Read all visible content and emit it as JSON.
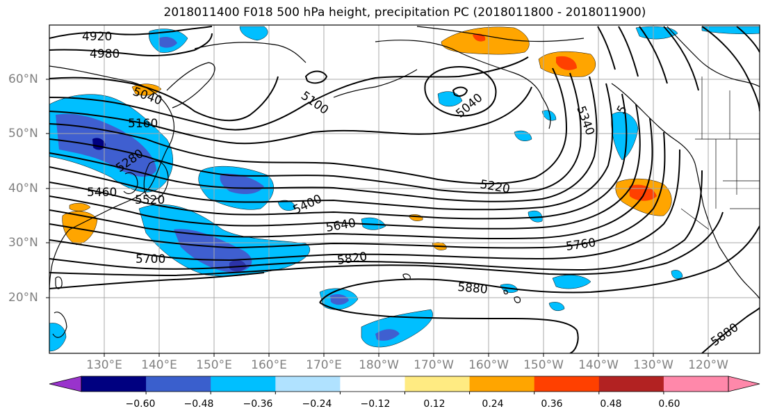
{
  "title": "2018011400 F018 500 hPa height, precipitation PC (2018011800 - 2018011900)",
  "lat_labels": [
    "60°N",
    "50°N",
    "40°N",
    "30°N",
    "20°N"
  ],
  "lon_labels": [
    "130°E",
    "140°E",
    "150°E",
    "160°E",
    "170°E",
    "180°W",
    "170°W",
    "160°W",
    "150°W",
    "140°W",
    "130°W",
    "120°W"
  ],
  "contour_labels": [
    "4920",
    "4980",
    "5040",
    "5100",
    "5040",
    "5160",
    "5280",
    "5340",
    "5460",
    "5520",
    "5400",
    "5220",
    "5640",
    "5700",
    "5820",
    "5760",
    "5880",
    "5880",
    "5"
  ],
  "colorbar": {
    "ticks": [
      "−0.60",
      "−0.48",
      "−0.36",
      "−0.24",
      "−0.12",
      "0.12",
      "0.24",
      "0.36",
      "0.48",
      "0.60"
    ],
    "colors": [
      "#9933cc",
      "#000080",
      "#3a5fcd",
      "#00bfff",
      "#b0e2ff",
      "#ffffff",
      "#ffeb82",
      "#ffa500",
      "#ff4000",
      "#b22222",
      "#ff88aa",
      "#ff88aa"
    ]
  },
  "colors": {
    "deep_negative": "#2c33a8",
    "mid_negative": "#3f5fd0",
    "light_negative": "#00bfff",
    "positive_orange": "#ffa500",
    "positive_red": "#ff4000"
  }
}
